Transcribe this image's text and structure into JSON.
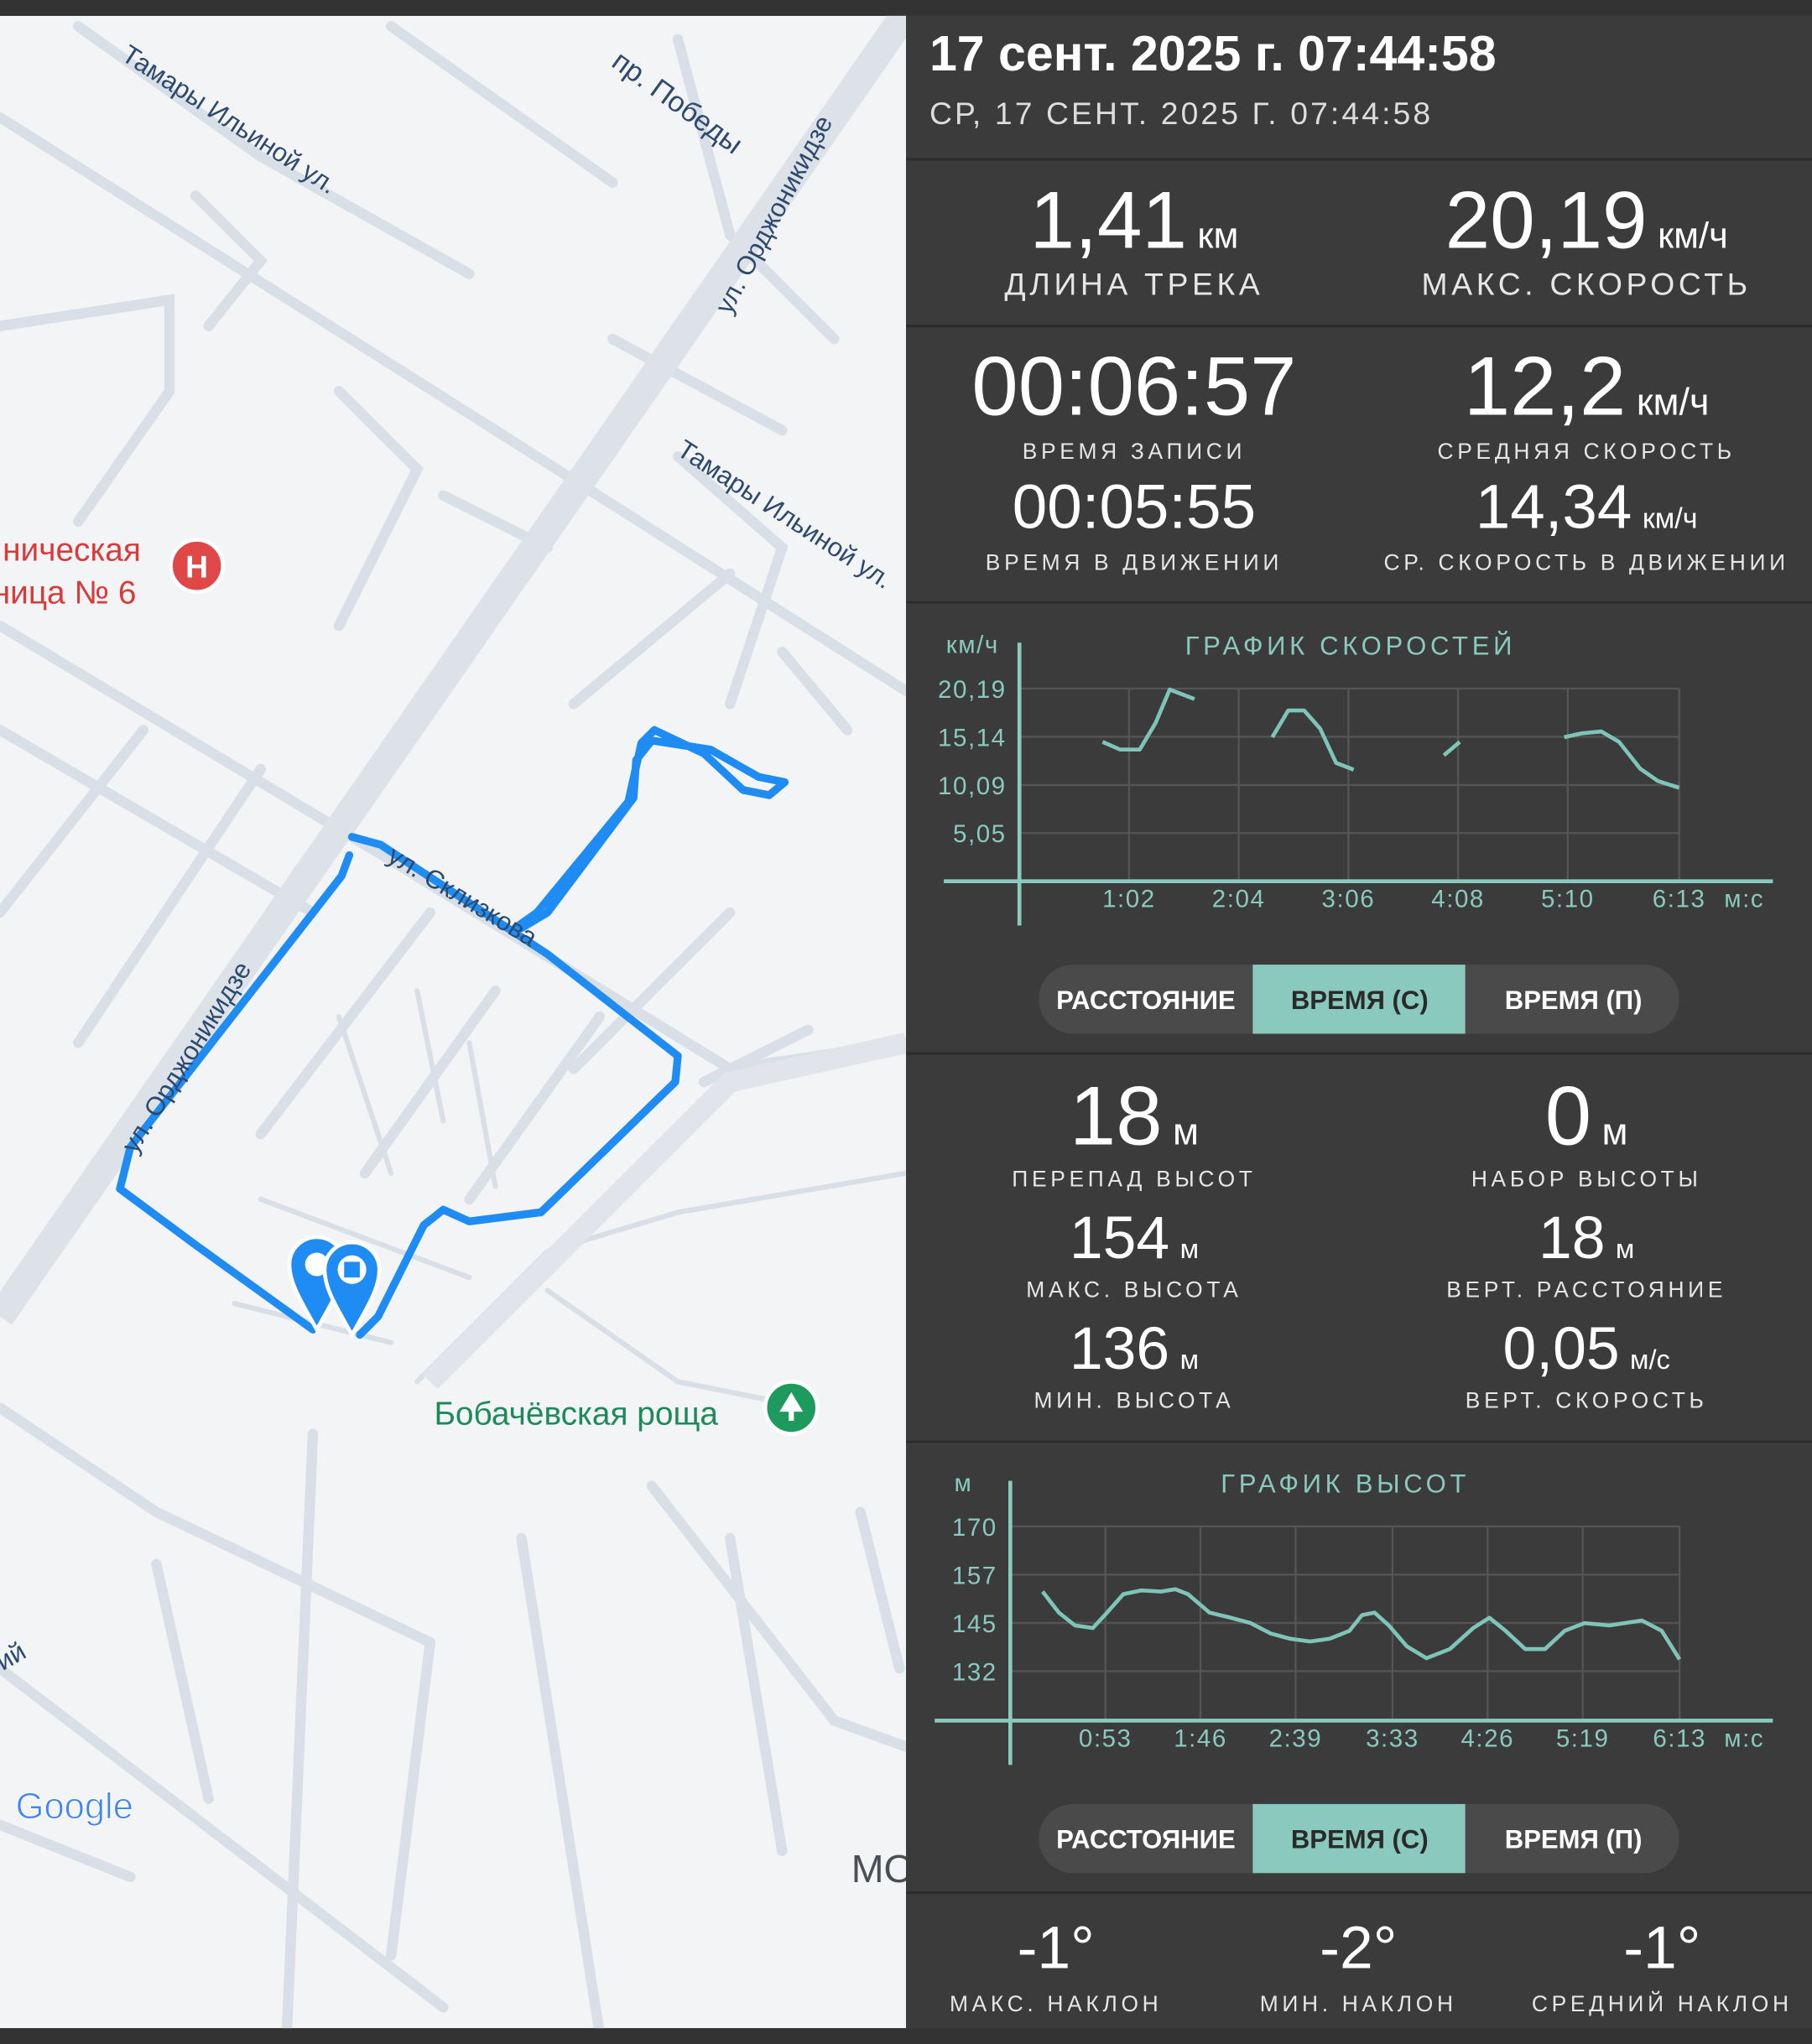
{
  "header": {
    "title": "17 сент. 2025 г. 07:44:58",
    "subtitle": "СР, 17 СЕНТ. 2025 Г. 07:44:58"
  },
  "map": {
    "streets": [
      "Тамары Ильиной ул.",
      "пр. Победы",
      "ул. Орджоникидзе",
      "Тамары Ильиной ул.",
      "ул. Склизкова",
      "ул. Орджоникидзе",
      "ий"
    ],
    "places": [
      "ническая",
      "ница № 6",
      "Бобачёвская роща",
      "МО"
    ],
    "logo": "Google"
  },
  "track_stats": [
    {
      "value": "1,41",
      "unit": "км",
      "label": "ДЛИНА ТРЕКА"
    },
    {
      "value": "20,19",
      "unit": "км/ч",
      "label": "МАКС. СКОРОСТЬ"
    },
    {
      "value": "00:06:57",
      "label": "ВРЕМЯ ЗАПИСИ"
    },
    {
      "value": "12,2",
      "unit": "км/ч",
      "label": "СРЕДНЯЯ СКОРОСТЬ"
    },
    {
      "value": "00:05:55",
      "label": "ВРЕМЯ В ДВИЖЕНИИ"
    },
    {
      "value": "14,34",
      "unit": "км/ч",
      "label": "СР. СКОРОСТЬ В ДВИЖЕНИИ"
    }
  ],
  "speed_chart": {
    "type": "line",
    "title": "ГРАФИК СКОРОСТЕЙ",
    "y_unit": "км/ч",
    "x_unit": "м:с",
    "color": "#7fc4b8",
    "x": [
      47,
      57,
      68,
      77,
      85,
      99,
      139,
      143,
      152,
      161,
      170,
      179,
      189,
      234,
      240,
      249,
      297,
      308,
      318,
      329,
      339,
      351,
      361,
      373
    ],
    "values": [
      14.6,
      13.8,
      13.8,
      16.6,
      20.1,
      19.1,
      null,
      15.1,
      17.9,
      17.9,
      16.0,
      12.4,
      11.7,
      null,
      13.2,
      14.6,
      null,
      15.1,
      15.5,
      15.7,
      14.6,
      11.8,
      10.5,
      9.8
    ],
    "xlim": [
      0,
      426
    ],
    "ylim": [
      0,
      25
    ],
    "xticks": [
      {
        "value": 62,
        "label": "1:02"
      },
      {
        "value": 124,
        "label": "2:04"
      },
      {
        "value": 186,
        "label": "3:06"
      },
      {
        "value": 248,
        "label": "4:08"
      },
      {
        "value": 310,
        "label": "5:10"
      },
      {
        "value": 373,
        "label": "6:13"
      }
    ],
    "yticks": [
      {
        "value": 5.05,
        "label": "5,05"
      },
      {
        "value": 10.09,
        "label": "10,09"
      },
      {
        "value": 15.14,
        "label": "15,14"
      },
      {
        "value": 20.19,
        "label": "20,19"
      }
    ],
    "grid": true
  },
  "speed_tabs": [
    "РАССТОЯНИЕ",
    "ВРЕМЯ (С)",
    "ВРЕМЯ (П)"
  ],
  "elevation_stats": [
    {
      "value": "18",
      "unit": "м",
      "label": "ПЕРЕПАД ВЫСОТ"
    },
    {
      "value": "0",
      "unit": "м",
      "label": "НАБОР ВЫСОТЫ"
    },
    {
      "value": "154",
      "unit": "м",
      "label": "МАКС. ВЫСОТА"
    },
    {
      "value": "18",
      "unit": "м",
      "label": "ВЕРТ. РАССТОЯНИЕ"
    },
    {
      "value": "136",
      "unit": "м",
      "label": "МИН. ВЫСОТА"
    },
    {
      "value": "0,05",
      "unit": "м/с",
      "label": "ВЕРТ. СКОРОСТЬ"
    }
  ],
  "altitude_chart": {
    "type": "line",
    "title": "ГРАФИК ВЫСОТ",
    "y_unit": "м",
    "x_unit": "м:с",
    "color": "#7fc4b8",
    "x": [
      18,
      27,
      36,
      46,
      54,
      63,
      73,
      84,
      92,
      99,
      111,
      123,
      134,
      145,
      156,
      167,
      178,
      189,
      196,
      203,
      211,
      221,
      232,
      245,
      258,
      267,
      276,
      287,
      298,
      309,
      320,
      334,
      352,
      363,
      373
    ],
    "values": [
      152.9,
      147.4,
      144.0,
      143.3,
      147.4,
      152.2,
      153.2,
      152.9,
      153.5,
      152.2,
      147.4,
      146.0,
      144.6,
      141.9,
      140.5,
      139.8,
      140.5,
      142.6,
      146.7,
      147.4,
      144.0,
      138.5,
      135.4,
      137.8,
      143.3,
      146.0,
      142.6,
      137.8,
      137.8,
      142.6,
      144.6,
      144.0,
      145.3,
      142.6,
      135.1
    ],
    "xlim": [
      0,
      425
    ],
    "ylim": [
      119,
      182
    ],
    "xticks": [
      {
        "value": 53,
        "label": "0:53"
      },
      {
        "value": 106,
        "label": "1:46"
      },
      {
        "value": 159,
        "label": "2:39"
      },
      {
        "value": 213,
        "label": "3:33"
      },
      {
        "value": 266,
        "label": "4:26"
      },
      {
        "value": 319,
        "label": "5:19"
      },
      {
        "value": 373,
        "label": "6:13"
      }
    ],
    "yticks": [
      132,
      {
        "value": 144.67,
        "label": "145"
      },
      {
        "value": 157.33,
        "label": "157"
      },
      170
    ],
    "grid": true
  },
  "altitude_tabs": [
    "РАССТОЯНИЕ",
    "ВРЕМЯ (С)",
    "ВРЕМЯ (П)"
  ],
  "slope_stats": [
    {
      "value": "-1°",
      "label": "МАКС. НАКЛОН"
    },
    {
      "value": "-2°",
      "label": "МИН. НАКЛОН"
    },
    {
      "value": "-1°",
      "label": "СРЕДНИЙ НАКЛОН"
    }
  ]
}
